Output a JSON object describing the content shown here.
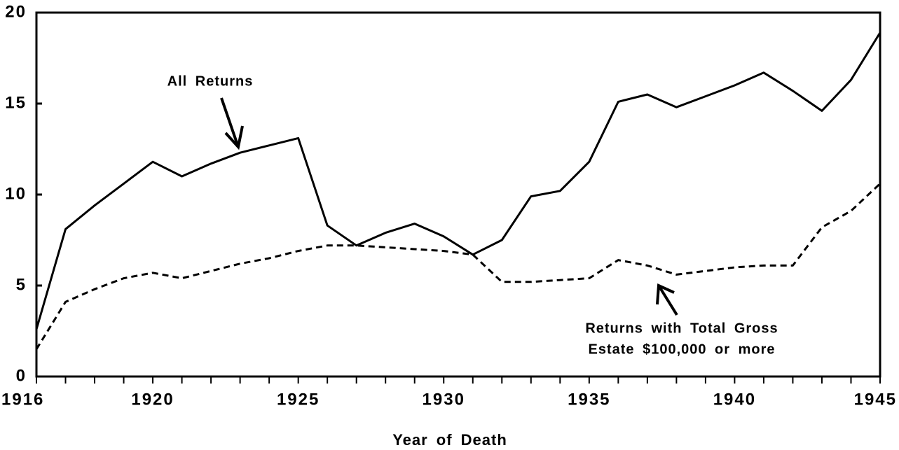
{
  "chart_data": {
    "type": "line",
    "x": [
      1916,
      1917,
      1918,
      1919,
      1920,
      1921,
      1922,
      1923,
      1924,
      1925,
      1926,
      1927,
      1928,
      1929,
      1930,
      1931,
      1932,
      1933,
      1934,
      1935,
      1936,
      1937,
      1938,
      1939,
      1940,
      1941,
      1942,
      1943,
      1944,
      1945
    ],
    "series": [
      {
        "color": "#000000",
        "dash": false,
        "values": [
          2.6,
          8.1,
          9.4,
          10.6,
          11.8,
          11.0,
          11.7,
          12.3,
          12.7,
          13.1,
          8.3,
          7.2,
          7.9,
          8.4,
          7.7,
          6.7,
          7.5,
          9.9,
          10.2,
          11.8,
          15.1,
          15.5,
          14.8,
          15.4,
          16.0,
          16.7,
          15.7,
          14.6,
          16.3,
          18.9
        ]
      },
      {
        "color": "#000000",
        "dash": true,
        "values": [
          1.5,
          4.1,
          4.8,
          5.4,
          5.7,
          5.4,
          5.8,
          6.2,
          6.5,
          6.9,
          7.2,
          7.2,
          7.1,
          7.0,
          6.9,
          6.7,
          5.2,
          5.2,
          5.3,
          5.4,
          6.4,
          6.1,
          5.6,
          5.8,
          6.0,
          6.1,
          6.1,
          8.2,
          9.1,
          10.6
        ]
      }
    ],
    "xlim": [
      1916,
      1945
    ],
    "ylim": [
      0,
      20
    ],
    "xticks": [
      1916,
      1920,
      1925,
      1930,
      1935,
      1940,
      1945
    ],
    "xminorticks": [
      1916,
      1917,
      1918,
      1919,
      1920,
      1921,
      1922,
      1923,
      1924,
      1925,
      1926,
      1927,
      1928,
      1929,
      1930,
      1931,
      1932,
      1933,
      1934,
      1935,
      1936,
      1937,
      1938,
      1939,
      1940,
      1941,
      1942,
      1943,
      1944,
      1945
    ],
    "yticks": [
      0,
      5,
      10,
      15,
      20
    ],
    "xlabel": "Year of Death",
    "annotations": [
      {
        "lines": [
          "All Returns"
        ]
      },
      {
        "lines": [
          "Returns with Total Gross",
          "Estate $100,000 or more"
        ]
      }
    ]
  }
}
